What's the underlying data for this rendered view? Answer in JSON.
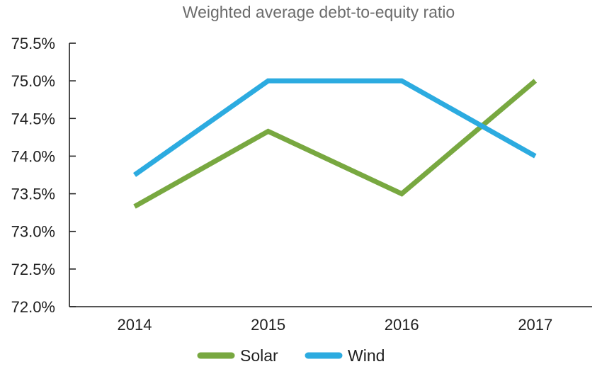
{
  "chart_data": {
    "type": "line",
    "title": "Weighted average debt-to-equity ratio",
    "xlabel": "",
    "ylabel": "",
    "categories": [
      "2014",
      "2015",
      "2016",
      "2017"
    ],
    "ylim": [
      72.0,
      75.5
    ],
    "ytick_values": [
      72.0,
      72.5,
      73.0,
      73.5,
      74.0,
      74.5,
      75.0,
      75.5
    ],
    "ytick_labels": [
      "72.0%",
      "72.5%",
      "73.0%",
      "73.5%",
      "74.0%",
      "74.5%",
      "75.0%",
      "75.5%"
    ],
    "grid": false,
    "legend_position": "bottom",
    "series": [
      {
        "name": "Solar",
        "color": "#78a840",
        "values": [
          73.33,
          74.33,
          73.5,
          75.0
        ]
      },
      {
        "name": "Wind",
        "color": "#2cabe0",
        "values": [
          73.75,
          75.0,
          75.0,
          74.0
        ]
      }
    ]
  }
}
